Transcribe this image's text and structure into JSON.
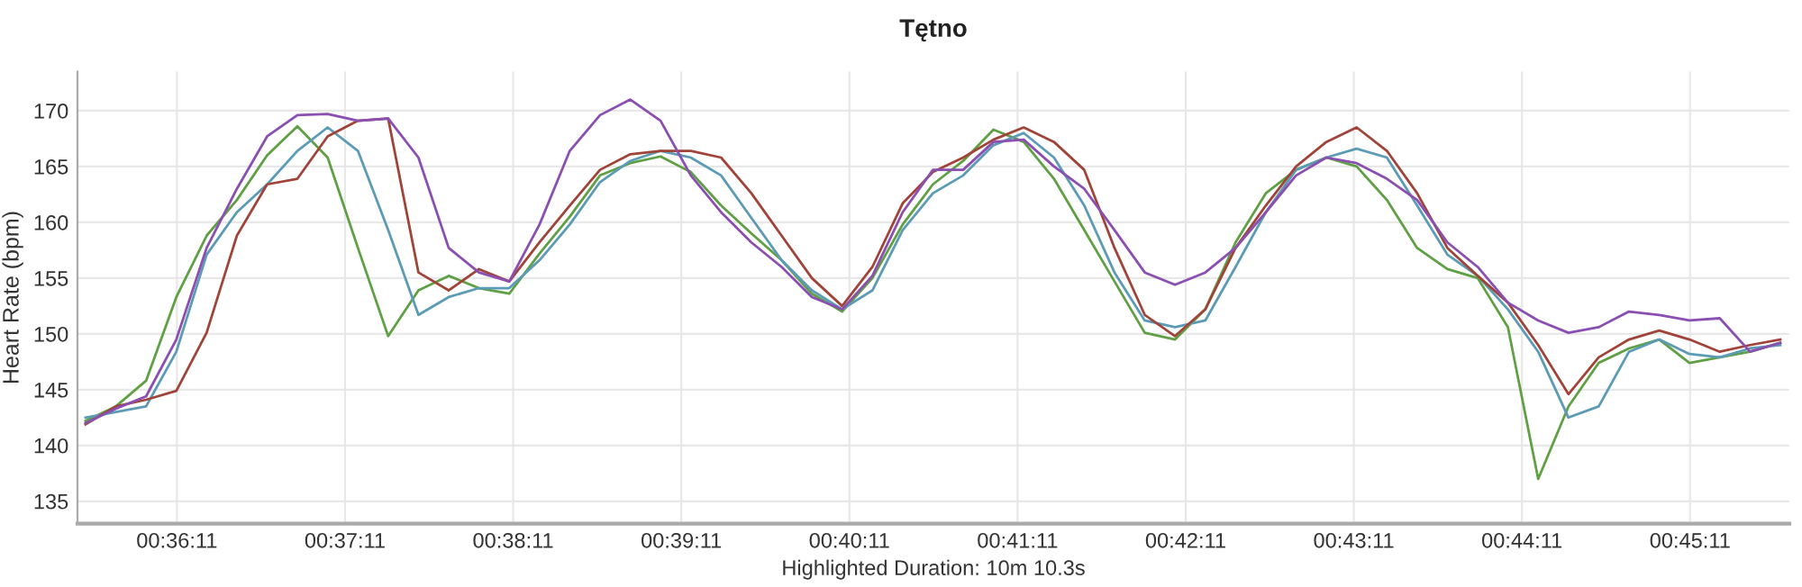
{
  "chart_data": {
    "type": "line",
    "title": "Tętno",
    "ylabel": "Heart Rate (bpm)",
    "xlabel": "Highlighted Duration: 10m 10.3s",
    "x": [
      0.594,
      0.597,
      0.6,
      0.603,
      0.606,
      0.609,
      0.612,
      0.615,
      0.618,
      0.621,
      0.624,
      0.627,
      0.63,
      0.633,
      0.636,
      0.639,
      0.642,
      0.645,
      0.648,
      0.651,
      0.654,
      0.657,
      0.66,
      0.663,
      0.666,
      0.669,
      0.672,
      0.675,
      0.678,
      0.681,
      0.684,
      0.687,
      0.69,
      0.693,
      0.696,
      0.699,
      0.702,
      0.705,
      0.708,
      0.711,
      0.714,
      0.717,
      0.72,
      0.723,
      0.726,
      0.729,
      0.732,
      0.735,
      0.738,
      0.741,
      0.744,
      0.747,
      0.75,
      0.753,
      0.756,
      0.759,
      0.762
    ],
    "series": [
      {
        "color": "#5fa044",
        "values": [
          142.2,
          143.5,
          145.8,
          153.3,
          158.8,
          162,
          166,
          168.6,
          165.8,
          157.7,
          149.8,
          153.9,
          155.2,
          154.1,
          153.6,
          157.2,
          160.5,
          164.2,
          165.3,
          165.9,
          164.5,
          161.5,
          159,
          156.6,
          153.6,
          152,
          155,
          159.8,
          163.4,
          165.5,
          168.3,
          167.2,
          163.9,
          159.3,
          154.7,
          150.1,
          149.5,
          152.2,
          158.2,
          162.6,
          164.7,
          165.8,
          165,
          162,
          157.7,
          155.8,
          155,
          150.6,
          137,
          143.5,
          147.4,
          148.7,
          149.5,
          147.4,
          147.9,
          148.4,
          149.2
        ]
      },
      {
        "color": "#5b9bb5",
        "values": [
          142.5,
          143,
          143.5,
          148.4,
          157.1,
          160.9,
          163.4,
          166.4,
          168.5,
          166.4,
          159.3,
          151.7,
          153.3,
          154.1,
          154.1,
          156.6,
          159.8,
          163.6,
          165.5,
          166.4,
          165.8,
          164.2,
          160.4,
          156.6,
          153.9,
          152.2,
          153.9,
          159.3,
          162.6,
          164.2,
          166.9,
          168,
          165.8,
          161.5,
          155.5,
          151.2,
          150.6,
          151.2,
          156,
          160.9,
          164.7,
          165.8,
          166.6,
          165.8,
          161.5,
          157.1,
          155.2,
          152.2,
          148.4,
          142.5,
          143.5,
          148.4,
          149.5,
          148.2,
          147.9,
          148.7,
          149
        ]
      },
      {
        "color": "#a0443a",
        "values": [
          141.9,
          143.5,
          144.1,
          144.9,
          150.1,
          158.8,
          163.4,
          163.9,
          167.7,
          169.1,
          169.3,
          155.5,
          153.9,
          155.8,
          154.7,
          158.2,
          161.5,
          164.7,
          166.1,
          166.4,
          166.4,
          165.8,
          162.6,
          158.8,
          155,
          152.5,
          156,
          161.7,
          164.5,
          165.8,
          167.4,
          168.5,
          167.2,
          164.7,
          157.7,
          151.7,
          149.8,
          152.2,
          157.7,
          161.5,
          165,
          167.2,
          168.5,
          166.4,
          162.6,
          157.7,
          155.2,
          152.8,
          149,
          144.6,
          147.9,
          149.5,
          150.3,
          149.5,
          148.4,
          149,
          149.5
        ]
      },
      {
        "color": "#8a4fb0",
        "values": [
          142,
          143.3,
          144.4,
          149.5,
          157.7,
          163,
          167.7,
          169.6,
          169.7,
          169.1,
          169.3,
          165.8,
          157.7,
          155.5,
          154.7,
          159.8,
          166.4,
          169.6,
          171,
          169.1,
          164.2,
          160.9,
          158.2,
          156,
          153.3,
          152.2,
          155.2,
          160.9,
          164.7,
          164.7,
          167.2,
          167.4,
          165,
          163,
          159.3,
          155.5,
          154.4,
          155.5,
          157.7,
          160.9,
          164.2,
          165.8,
          165.3,
          163.9,
          162,
          158.2,
          156,
          152.8,
          151.2,
          150.1,
          150.6,
          152,
          151.7,
          151.2,
          151.4,
          148.4,
          149.2
        ]
      }
    ],
    "xlim": [
      0.5932,
      0.7629
    ],
    "ylim": [
      133,
      173.5
    ],
    "xticks": [
      {
        "value": 0.603056,
        "label": "00:36:11"
      },
      {
        "value": 0.619722,
        "label": "00:37:11"
      },
      {
        "value": 0.636389,
        "label": "00:38:11"
      },
      {
        "value": 0.653056,
        "label": "00:39:11"
      },
      {
        "value": 0.669722,
        "label": "00:40:11"
      },
      {
        "value": 0.686389,
        "label": "00:41:11"
      },
      {
        "value": 0.703056,
        "label": "00:42:11"
      },
      {
        "value": 0.719722,
        "label": "00:43:11"
      },
      {
        "value": 0.736389,
        "label": "00:44:11"
      },
      {
        "value": 0.753056,
        "label": "00:45:11"
      }
    ],
    "yticks": [
      135,
      140,
      145,
      150,
      155,
      160,
      165,
      170
    ],
    "grid": true,
    "marker": "none",
    "line_style": "solid"
  }
}
